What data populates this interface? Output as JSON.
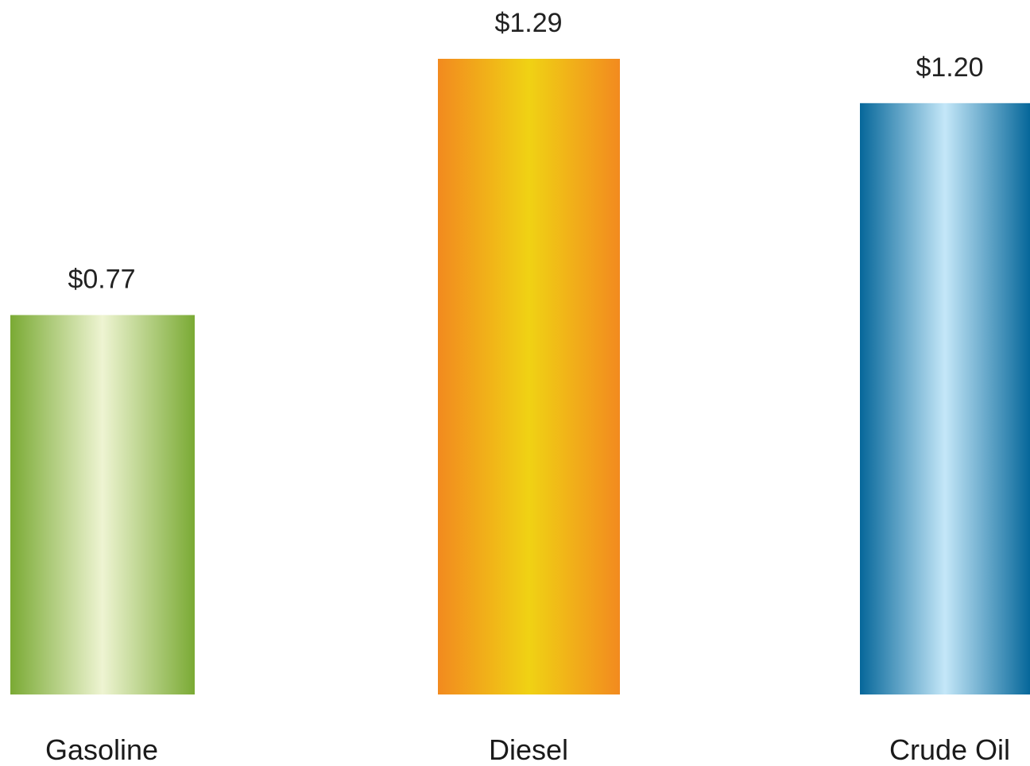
{
  "chart_data": {
    "type": "bar",
    "categories": [
      "Gasoline",
      "Diesel",
      "Crude Oil"
    ],
    "values": [
      0.77,
      1.29,
      1.2
    ],
    "value_labels": [
      "$0.77",
      "$1.29",
      "$1.20"
    ],
    "title": "",
    "xlabel": "",
    "ylabel": "",
    "ylim": [
      0,
      1.29
    ],
    "grid": false,
    "legend": "none",
    "colors": [
      {
        "edge": "#7aaa34",
        "mid": "#eef4d2"
      },
      {
        "edge": "#f28a1f",
        "mid": "#f0d214"
      },
      {
        "edge": "#06679a",
        "mid": "#c4e7f8"
      }
    ]
  }
}
